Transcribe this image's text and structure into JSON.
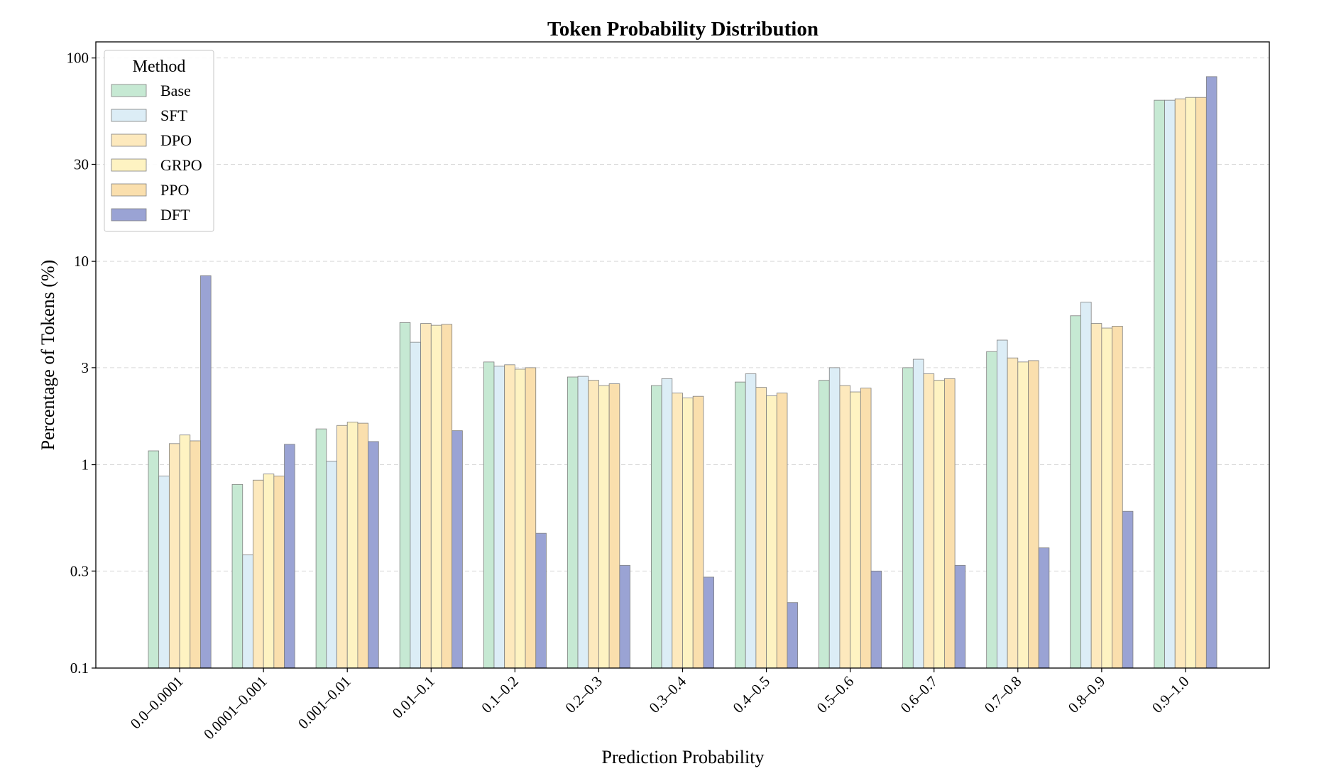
{
  "chart_data": {
    "type": "bar",
    "title": "Token Probability Distribution",
    "xlabel": "Prediction Probability",
    "ylabel": "Percentage  of  Tokens (%)",
    "yscale": "log",
    "ylim": [
      0.1,
      120
    ],
    "yticks": [
      0.1,
      0.3,
      1,
      3,
      10,
      30,
      100
    ],
    "ytick_labels": [
      "0.1",
      "0.3",
      "1",
      "3",
      "10",
      "30",
      "100"
    ],
    "grid": "y-dashed",
    "legend_title": "Method",
    "legend_position": "top-left",
    "categories": [
      "0.0–0.0001",
      "0.0001–0.001",
      "0.001–0.01",
      "0.01–0.1",
      "0.1–0.2",
      "0.2–0.3",
      "0.3–0.4",
      "0.4–0.5",
      "0.5–0.6",
      "0.6–0.7",
      "0.7–0.8",
      "0.8–0.9",
      "0.9–1.0"
    ],
    "series": [
      {
        "name": "Base",
        "color": "#c6e9d3",
        "values": [
          1.17,
          0.8,
          1.5,
          5.0,
          3.2,
          2.7,
          2.45,
          2.55,
          2.6,
          3.0,
          3.6,
          5.4,
          62
        ]
      },
      {
        "name": "SFT",
        "color": "#dcedf6",
        "values": [
          0.88,
          0.36,
          1.04,
          4.0,
          3.05,
          2.72,
          2.65,
          2.8,
          3.0,
          3.3,
          4.1,
          6.3,
          62
        ]
      },
      {
        "name": "DPO",
        "color": "#fde9bd",
        "values": [
          1.27,
          0.84,
          1.56,
          4.95,
          3.1,
          2.6,
          2.25,
          2.4,
          2.45,
          2.8,
          3.35,
          4.95,
          63
        ]
      },
      {
        "name": "GRPO",
        "color": "#fef3c2",
        "values": [
          1.4,
          0.9,
          1.62,
          4.85,
          2.95,
          2.45,
          2.13,
          2.18,
          2.28,
          2.6,
          3.2,
          4.7,
          64
        ]
      },
      {
        "name": "PPO",
        "color": "#fadfad",
        "values": [
          1.31,
          0.88,
          1.6,
          4.9,
          3.0,
          2.5,
          2.17,
          2.25,
          2.38,
          2.65,
          3.25,
          4.8,
          64
        ]
      },
      {
        "name": "DFT",
        "color": "#9aa3d4",
        "values": [
          8.5,
          1.26,
          1.3,
          1.47,
          0.46,
          0.32,
          0.28,
          0.21,
          0.3,
          0.32,
          0.39,
          0.59,
          81
        ]
      }
    ]
  }
}
